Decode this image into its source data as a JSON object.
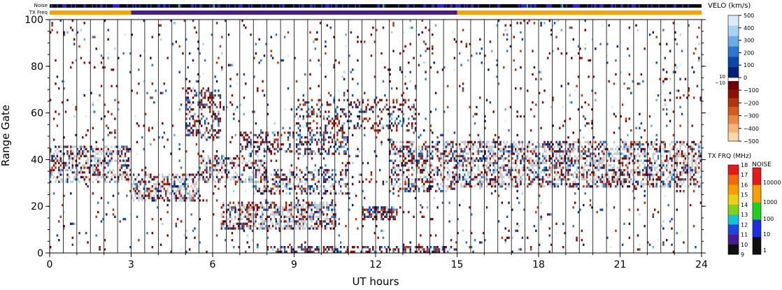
{
  "chart_data": {
    "type": "heatmap",
    "xlabel": "UT hours",
    "ylabel": "Range Gate",
    "xlim": [
      0,
      24
    ],
    "ylim": [
      0,
      100
    ],
    "x_ticks": [
      "0",
      "3",
      "6",
      "9",
      "12",
      "15",
      "18",
      "21",
      "24"
    ],
    "y_ticks": [
      "0",
      "20",
      "40",
      "60",
      "80",
      "100"
    ],
    "top_bars": {
      "noise_label": "Noise",
      "txfreq_label": "TX Freq",
      "txfreq_segments": [
        {
          "start": 0,
          "end": 3,
          "color": "#f7a400"
        },
        {
          "start": 3,
          "end": 15,
          "color": "#4b1b86"
        },
        {
          "start": 15,
          "end": 24,
          "color": "#f7a400"
        }
      ]
    },
    "velocity_colorbar": {
      "title": "VELO (km/s)",
      "positive_ticks": [
        "500",
        "400",
        "300",
        "200",
        "100",
        "0"
      ],
      "negative_ticks": [
        "−100",
        "−200",
        "−300",
        "−400",
        "−500"
      ],
      "small_ticks": [
        "10",
        "−10"
      ],
      "positive_colors": [
        "#d9ecfb",
        "#a9d3f4",
        "#6aace6",
        "#2c78cf",
        "#0c48a8",
        "#021f74"
      ],
      "negative_colors": [
        "#6e0303",
        "#8f1006",
        "#b5360d",
        "#d15d1f",
        "#e88944",
        "#f3b57a",
        "#f8d7ad"
      ]
    },
    "txfrq_colorbar": {
      "title": "TX FRQ (MHz)",
      "ticks": [
        "18",
        "17",
        "16",
        "15",
        "14",
        "13",
        "12",
        "11",
        "10",
        "9"
      ],
      "colors": [
        "#e51b1b",
        "#f26a10",
        "#f5a000",
        "#e7d214",
        "#83d21a",
        "#16c1d2",
        "#1c46e0",
        "#4a1c8e",
        "#101010"
      ]
    },
    "noise_colorbar": {
      "title": "NOISE",
      "ticks": [
        "10000",
        "1000",
        "100",
        "10",
        "1"
      ],
      "colors": [
        "#e51b1b",
        "#f5a000",
        "#1fd01f",
        "#1c2ee0",
        "#101010"
      ]
    },
    "scatter_regions": [
      {
        "x0": 0.0,
        "x1": 3.0,
        "y0": 30,
        "y1": 46,
        "density": 0.45,
        "ground": 0.5
      },
      {
        "x0": 3.0,
        "x1": 5.5,
        "y0": 22,
        "y1": 34,
        "density": 0.55,
        "ground": 0.55
      },
      {
        "x0": 5.0,
        "x1": 6.3,
        "y0": 48,
        "y1": 70,
        "density": 0.35,
        "ground": 0.0
      },
      {
        "x0": 5.5,
        "x1": 8.0,
        "y0": 30,
        "y1": 42,
        "density": 0.45,
        "ground": 0.4
      },
      {
        "x0": 6.3,
        "x1": 10.5,
        "y0": 10,
        "y1": 22,
        "density": 0.55,
        "ground": 0.45
      },
      {
        "x0": 7.0,
        "x1": 11.0,
        "y0": 42,
        "y1": 52,
        "density": 0.35,
        "ground": 0.0
      },
      {
        "x0": 7.5,
        "x1": 11.0,
        "y0": 25,
        "y1": 36,
        "density": 0.4,
        "ground": 0.3
      },
      {
        "x0": 9.0,
        "x1": 13.5,
        "y0": 52,
        "y1": 66,
        "density": 0.25,
        "ground": 0.0
      },
      {
        "x0": 11.5,
        "x1": 12.8,
        "y0": 14,
        "y1": 20,
        "density": 0.7,
        "ground": 0.0
      },
      {
        "x0": 12.5,
        "x1": 15.0,
        "y0": 26,
        "y1": 48,
        "density": 0.45,
        "ground": 0.3
      },
      {
        "x0": 15.0,
        "x1": 24.0,
        "y0": 28,
        "y1": 48,
        "density": 0.5,
        "ground": 0.45
      },
      {
        "x0": 8.0,
        "x1": 15.0,
        "y0": 0,
        "y1": 3,
        "density": 0.5,
        "ground": 0.0
      },
      {
        "x0": 0.0,
        "x1": 24.0,
        "y0": 0,
        "y1": 100,
        "density": 0.035,
        "ground": 0.0
      }
    ]
  }
}
